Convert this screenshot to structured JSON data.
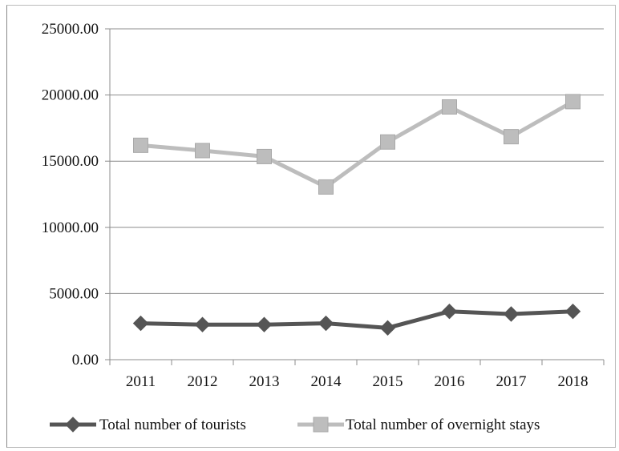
{
  "chart_data": {
    "type": "line",
    "categories": [
      "2011",
      "2012",
      "2013",
      "2014",
      "2015",
      "2016",
      "2017",
      "2018"
    ],
    "series": [
      {
        "name": "Total number of tourists",
        "values": [
          2750,
          2650,
          2650,
          2750,
          2400,
          3650,
          3450,
          3650
        ],
        "color": "#555555",
        "marker": "diamond"
      },
      {
        "name": "Total number of overnight stays",
        "values": [
          16200,
          15800,
          15350,
          13050,
          16450,
          19100,
          16850,
          19500
        ],
        "color": "#bdbdbd",
        "marker": "square"
      }
    ],
    "y_ticks": [
      "0.00",
      "5000.00",
      "10000.00",
      "15000.00",
      "20000.00",
      "25000.00"
    ],
    "ylim": [
      0,
      25000
    ],
    "grid": true,
    "legend_position": "bottom"
  }
}
